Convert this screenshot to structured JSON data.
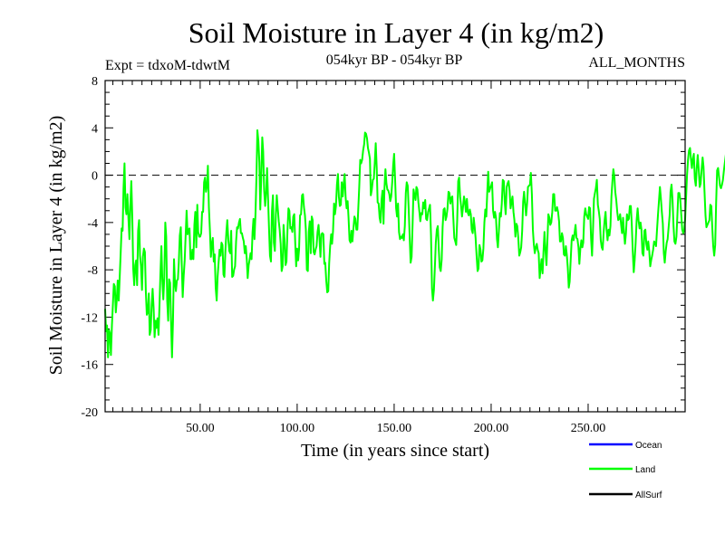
{
  "chart_data": {
    "type": "line",
    "title": "Soil Moisture in Layer 4 (in kg/m2)",
    "subtitle_left": "Expt = tdxoM-tdwtM",
    "subtitle_center": "054kyr BP - 054kyr BP",
    "subtitle_right": "ALL_MONTHS",
    "xlabel": "Time (in years since start)",
    "ylabel": "Soil Moisture in Layer 4 (in kg/m2)",
    "xlim": [
      1,
      300
    ],
    "ylim": [
      -20,
      8
    ],
    "x_ticks": [
      "50.00",
      "100.00",
      "150.00",
      "200.00",
      "250.00"
    ],
    "x_tick_values": [
      50,
      100,
      150,
      200,
      250
    ],
    "y_ticks": [
      "8",
      "4",
      "0",
      "-4",
      "-8",
      "-12",
      "-16",
      "-20"
    ],
    "y_tick_values": [
      8,
      4,
      0,
      -4,
      -8,
      -12,
      -16,
      -20
    ],
    "reference_line": {
      "y": 0,
      "style": "dashed"
    },
    "legend_position": "bottom-right",
    "legend": [
      {
        "name": "Ocean",
        "color": "#0000ff"
      },
      {
        "name": "Land",
        "color": "#00ff00"
      },
      {
        "name": "AllSurf",
        "color": "#000000"
      }
    ],
    "series": [
      {
        "name": "Land",
        "color": "#00ff00",
        "x_start": 1,
        "x_step": 0.5,
        "values": [
          -11.3,
          -13.2,
          -12.7,
          -15.4,
          -13.1,
          -13.4,
          -15.2,
          -12.7,
          -10.9,
          -9.2,
          -9.4,
          -11.6,
          -10.6,
          -8.9,
          -10.6,
          -8.6,
          -6.7,
          -4.5,
          -4.7,
          -1.1,
          1.0,
          -2.7,
          -3.3,
          -1.6,
          -3.6,
          -5.4,
          -2.6,
          -0.5,
          -3.6,
          -7.9,
          -9.3,
          -7.6,
          -7.2,
          -9.3,
          -4.7,
          -3.8,
          -6.8,
          -7.7,
          -9.7,
          -6.9,
          -6.2,
          -6.5,
          -9.8,
          -11.8,
          -11.6,
          -10.0,
          -13.5,
          -13.1,
          -10.9,
          -9.6,
          -11.2,
          -13.7,
          -12.3,
          -12.9,
          -12.1,
          -13.5,
          -11.2,
          -8.4,
          -6.0,
          -8.8,
          -10.5,
          -8.6,
          -4.0,
          -5.2,
          -10.6,
          -12.3,
          -8.8,
          -9.1,
          -12.5,
          -15.4,
          -12.3,
          -7.1,
          -9.1,
          -9.8,
          -8.9,
          -8.8,
          -7.4,
          -5.1,
          -4.4,
          -7.4,
          -10.3,
          -8.5,
          -7.2,
          -5.2,
          -3.0,
          -5.0,
          -4.6,
          -4.5,
          -7.1,
          -7.1,
          -6.3,
          -7.1,
          -4.2,
          -3.1,
          -6.1,
          -2.5,
          -4.8,
          -5.2,
          -5.2,
          -4.9,
          -3.1,
          -3.1,
          -0.6,
          -0.2,
          -1.4,
          -0.9,
          0.8,
          -2.7,
          -4.6,
          -6.9,
          -5.8,
          -5.3,
          -7.3,
          -6.7,
          -9.5,
          -10.6,
          -8.6,
          -7.4,
          -6.3,
          -6.8,
          -5.7,
          -5.9,
          -8.4,
          -8.6,
          -6.4,
          -4.8,
          -3.8,
          -5.4,
          -6.4,
          -6.6,
          -4.7,
          -8.6,
          -8.5,
          -8.0,
          -7.7,
          -5.6,
          -4.4,
          -4.5,
          -4.0,
          -3.7,
          -4.9,
          -4.9,
          -5.3,
          -5.6,
          -6.6,
          -6.0,
          -7.1,
          -8.7,
          -7.6,
          -7.1,
          -6.6,
          -7.1,
          -4.8,
          -3.7,
          -5.4,
          -3.3,
          -0.1,
          3.8,
          2.9,
          1.1,
          -2.9,
          -0.2,
          3.2,
          2.0,
          -1.3,
          -2.6,
          -1.4,
          0.6,
          -2.0,
          -4.6,
          -6.8,
          -7.3,
          -3.0,
          -1.7,
          -5.7,
          -6.4,
          -3.3,
          -1.7,
          -2.8,
          -3.9,
          -4.6,
          -5.8,
          -8.1,
          -7.7,
          -4.2,
          -5.5,
          -7.6,
          -7.3,
          -4.7,
          -2.8,
          -3.0,
          -4.5,
          -4.4,
          -4.8,
          -3.5,
          -3.3,
          -5.8,
          -7.7,
          -6.2,
          -7.2,
          -6.3,
          -3.4,
          -3.3,
          -1.7,
          -1.6,
          -2.7,
          -3.4,
          -4.6,
          -8.0,
          -8.1,
          -4.8,
          -3.9,
          -6.6,
          -3.5,
          -3.8,
          -6.5,
          -6.7,
          -6.3,
          -6.0,
          -4.8,
          -4.2,
          -5.3,
          -6.9,
          -5.0,
          -4.9,
          -5.0,
          -7.5,
          -7.4,
          -8.9,
          -9.9,
          -9.8,
          -7.5,
          -6.0,
          -5.0,
          -5.8,
          -4.7,
          -2.4,
          -3.3,
          -2.6,
          -0.8,
          0.1,
          -1.8,
          -2.6,
          -2.5,
          -0.6,
          -1.8,
          -0.7,
          0.1,
          -1.9,
          -2.8,
          -2.2,
          -3.6,
          -5.5,
          -5.7,
          -4.7,
          -5.6,
          -4.5,
          -3.5,
          -3.7,
          -4.6,
          -4.6,
          -2.9,
          -1.0,
          1.3,
          1.0,
          1.3,
          2.1,
          2.6,
          3.6,
          3.5,
          3.1,
          2.3,
          1.9,
          1.4,
          -1.7,
          -1.2,
          -0.4,
          -0.3,
          1.0,
          2.7,
          0.6,
          -2.3,
          -2.4,
          -3.6,
          -4.0,
          -2.1,
          -1.3,
          -4.1,
          -1.2,
          0.5,
          -0.7,
          -1.2,
          -1.3,
          -1.6,
          -2.2,
          -1.8,
          -0.6,
          0.9,
          1.8,
          -0.4,
          -2.8,
          -3.5,
          -2.4,
          -4.8,
          -5.4,
          -5.2,
          -5.3,
          -5.0,
          -5.5,
          -4.3,
          -1.5,
          -0.6,
          -0.9,
          -2.9,
          -5.3,
          -7.4,
          -6.9,
          -4.1,
          -1.2,
          -1.7,
          -2.1,
          -1.0,
          -1.2,
          -2.3,
          -3.1,
          -3.9,
          -3.2,
          -3.3,
          -2.3,
          -2.8,
          -2.1,
          -3.7,
          -3.8,
          -3.1,
          -2.8,
          -2.5,
          -5.1,
          -9.6,
          -10.6,
          -9.7,
          -7.7,
          -5.7,
          -4.6,
          -4.3,
          -6.3,
          -7.8,
          -8.1,
          -7.1,
          -4.4,
          -2.9,
          -2.8,
          -3.8,
          -3.5,
          -2.8,
          -1.4,
          -1.5,
          -2.4,
          -1.9,
          -1.8,
          -3.6,
          -5.3,
          -5.6,
          -5.9,
          -3.8,
          -0.5,
          -0.2,
          -1.8,
          -2.6,
          -3.5,
          -2.7,
          -1.8,
          -2.3,
          -3.1,
          -2.0,
          -3.2,
          -3.4,
          -2.9,
          -3.3,
          -4.6,
          -4.9,
          -3.6,
          -4.4,
          -5.3,
          -6.8,
          -8.1,
          -7.9,
          -5.9,
          -6.3,
          -7.3,
          -7.2,
          -6.2,
          -4.0,
          -2.9,
          -3.5,
          -1.4,
          0.3,
          -1.4,
          -1.1,
          -0.9,
          -0.6,
          -3.0,
          -3.6,
          -3.1,
          -3.6,
          -5.4,
          -6.1,
          -4.7,
          -3.2,
          -3.5,
          -2.4,
          -0.4,
          -0.5,
          -2.2,
          -3.3,
          -1.0,
          -0.7,
          -0.5,
          -1.3,
          -2.8,
          -2.3,
          -1.8,
          -3.1,
          -3.8,
          -5.2,
          -4.1,
          -4.3,
          -5.3,
          -6.8,
          -6.5,
          -6.1,
          -4.7,
          -2.2,
          -1.4,
          -2.4,
          -3.4,
          -2.4,
          -1.0,
          -0.9,
          -0.8,
          0.2,
          -1.6,
          -4.6,
          -5.8,
          -6.6,
          -6.1,
          -5.8,
          -6.3,
          -6.6,
          -8.7,
          -7.9,
          -7.1,
          -8.3,
          -6.5,
          -4.8,
          -6.4,
          -7.6,
          -5.6,
          -3.3,
          -3.6,
          -4.2,
          -4.0,
          -3.1,
          -1.6,
          -1.6,
          -3.0,
          -3.0,
          -2.7,
          -3.1,
          -3.9,
          -5.6,
          -5.6,
          -4.9,
          -5.3,
          -6.7,
          -6.8,
          -6.0,
          -6.7,
          -7.8,
          -9.5,
          -9.0,
          -7.2,
          -5.5,
          -5.1,
          -5.5,
          -4.9,
          -4.2,
          -5.3,
          -5.4,
          -6.1,
          -7.5,
          -6.2,
          -5.5,
          -6.1,
          -5.7,
          -3.5,
          -2.8,
          -3.3,
          -3.5,
          -3.7,
          -2.7,
          -2.8,
          -5.3,
          -6.8,
          -4.7,
          -2.0,
          -1.5,
          -1.1,
          -0.4,
          -2.5,
          -3.0,
          -3.7,
          -5.5,
          -6.1,
          -6.3,
          -4.8,
          -3.8,
          -3.1,
          -4.6,
          -5.5,
          -4.6,
          -5.1,
          -4.3,
          -1.8,
          -0.6,
          0.5,
          -0.1,
          -1.4,
          -2.1,
          -3.1,
          -3.8,
          -3.7,
          -3.3,
          -4.2,
          -4.9,
          -3.6,
          -4.9,
          -5.8,
          -4.9,
          -3.3,
          -3.8,
          -3.7,
          -2.6,
          -2.6,
          -4.1,
          -6.4,
          -8.2,
          -7.2,
          -5.7,
          -3.8,
          -2.8,
          -3.8,
          -4.5,
          -4.0,
          -4.6,
          -6.6,
          -6.8,
          -4.7,
          -4.6,
          -5.8,
          -6.3,
          -5.6,
          -6.4,
          -7.7,
          -7.2,
          -6.8,
          -6.3,
          -5.6,
          -5.7,
          -6.0,
          -4.6,
          -3.4,
          -2.2,
          -1.0,
          -1.9,
          -3.1,
          -4.1,
          -6.6,
          -7.4,
          -6.4,
          -5.7,
          -5.4,
          -4.4,
          -3.4,
          -1.4,
          -0.8,
          -2.1,
          -4.3,
          -5.6,
          -5.8,
          -5.2,
          -3.5,
          -1.5,
          -1.5,
          -2.0,
          -3.3,
          -4.6,
          -4.9,
          -4.7,
          -3.7,
          -1.8,
          0.0,
          1.3,
          2.1,
          2.3,
          1.4,
          0.6,
          1.4,
          1.8,
          -0.3,
          -0.9,
          0.6,
          1.7,
          0.5,
          -1.0,
          -0.7,
          0.5,
          1.5,
          0.7,
          -1.4,
          -3.4,
          -4.4,
          -4.2,
          -4.0,
          -3.8,
          -2.5,
          -2.6,
          -4.5,
          -6.0,
          -6.8,
          -5.9,
          -2.4,
          0.4,
          0.6,
          -0.2,
          -0.9,
          -1.1,
          -0.8,
          -0.4,
          0.4,
          1.1,
          1.7,
          2.6,
          2.8,
          2.5,
          2.0
        ]
      }
    ]
  }
}
